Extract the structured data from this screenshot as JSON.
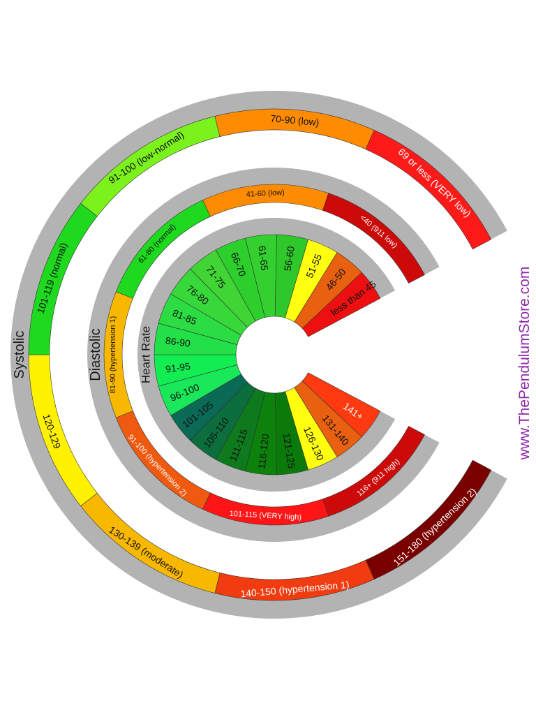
{
  "watermark": "www.ThePendulumStore.com",
  "colors": {
    "ring_bg": "#b3b3b3",
    "background": "#ffffff"
  },
  "rings": [
    {
      "key": "systolic",
      "label": "Systolic",
      "segments": [
        {
          "text": "151-180 (hypertension 2)",
          "color": "#7a0000",
          "text_color": "#ffffff"
        },
        {
          "text": "140-150 (hypertension 1)",
          "color": "#f03c10",
          "text_color": "#ffffff"
        },
        {
          "text": "130-139 (moderate)",
          "color": "#f8b800",
          "text_color": "#111111"
        },
        {
          "text": "120-129",
          "color": "#fff200",
          "text_color": "#111111"
        },
        {
          "text": "101-119 (normal)",
          "color": "#1ed91e",
          "text_color": "#111111"
        },
        {
          "text": "91-100 (low-normal)",
          "color": "#7cf21c",
          "text_color": "#111111"
        },
        {
          "text": "70-90 (low)",
          "color": "#ff8c00",
          "text_color": "#111111"
        },
        {
          "text": "69 or less (VERY low)",
          "color": "#ff1a1a",
          "text_color": "#ffffff"
        }
      ]
    },
    {
      "key": "diastolic",
      "label": "Diastolic",
      "segments": [
        {
          "text": "116+ (911 high)",
          "color": "#cc0a0a",
          "text_color": "#ffffff"
        },
        {
          "text": "101-115 (VERY high)",
          "color": "#ff1515",
          "text_color": "#ffffff"
        },
        {
          "text": "91-100 (hypertension 2)",
          "color": "#f05a10",
          "text_color": "#ffffff"
        },
        {
          "text": "81-90 (hypertension 1)",
          "color": "#f8b800",
          "text_color": "#111111"
        },
        {
          "text": "61-80 (normal)",
          "color": "#1ed91e",
          "text_color": "#111111"
        },
        {
          "text": "41-60 (low)",
          "color": "#ff8c00",
          "text_color": "#111111"
        },
        {
          "text": "<40 (911 low)",
          "color": "#cc0a0a",
          "text_color": "#ffffff"
        }
      ]
    },
    {
      "key": "heart_rate",
      "label": "Heart Rate",
      "segments": [
        {
          "text": "141+",
          "color": "#ff3a10",
          "text_color": "#ffffff"
        },
        {
          "text": "131-140",
          "color": "#e86010",
          "text_color": "#111111"
        },
        {
          "text": "126-130",
          "color": "#ffff10",
          "text_color": "#111111"
        },
        {
          "text": "121-125",
          "color": "#0a7a0a",
          "text_color": "#111111"
        },
        {
          "text": "116-120",
          "color": "#0c820c",
          "text_color": "#111111"
        },
        {
          "text": "111-115",
          "color": "#0e7a1e",
          "text_color": "#111111"
        },
        {
          "text": "105-110",
          "color": "#0b6e3c",
          "text_color": "#111111"
        },
        {
          "text": "101-105",
          "color": "#0a6a55",
          "text_color": "#111111"
        },
        {
          "text": "96-100",
          "color": "#18e85a",
          "text_color": "#111111"
        },
        {
          "text": "91-95",
          "color": "#12ee52",
          "text_color": "#111111"
        },
        {
          "text": "86-90",
          "color": "#22e048",
          "text_color": "#111111"
        },
        {
          "text": "81-85",
          "color": "#2bdc42",
          "text_color": "#111111"
        },
        {
          "text": "76-80",
          "color": "#36d83a",
          "text_color": "#111111"
        },
        {
          "text": "71-75",
          "color": "#40d434",
          "text_color": "#111111"
        },
        {
          "text": "66-70",
          "color": "#2ccf2c",
          "text_color": "#111111"
        },
        {
          "text": "61-65",
          "color": "#34d030",
          "text_color": "#111111"
        },
        {
          "text": "56-60",
          "color": "#2ec82a",
          "text_color": "#111111"
        },
        {
          "text": "51-55",
          "color": "#ffff10",
          "text_color": "#111111"
        },
        {
          "text": "46-50",
          "color": "#e86010",
          "text_color": "#111111"
        },
        {
          "text": "less than 45",
          "color": "#ee1010",
          "text_color": "#111111"
        }
      ]
    }
  ]
}
